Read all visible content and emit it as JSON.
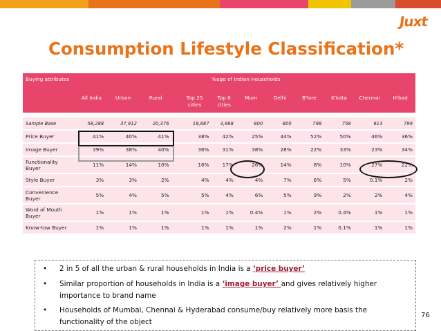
{
  "brand": {
    "logo": "Juxt",
    "accent": "#e8731a",
    "header_color": "#e8456b",
    "row_color": "#fde4ea"
  },
  "topbar": {
    "colors": [
      "#f3a01b",
      "#e8731a",
      "#e8456b",
      "#f0c500",
      "#9b9b9b",
      "#d84d2c"
    ]
  },
  "slide": {
    "title": "Consumption Lifestyle Classification*",
    "page_number": "76"
  },
  "table": {
    "header_attr": "Buying attributes",
    "header_group": "%age of Indian Households",
    "columns": [
      "All India",
      "Urban",
      "Rural",
      "Top 25 cities",
      "Top 6 cities",
      "Mum",
      "Delhi",
      "B'lore",
      "K'kata",
      "Chennai",
      "H'bad"
    ],
    "rows": [
      {
        "label": "Sample Base",
        "values": [
          "58,288",
          "37,912",
          "20,376",
          "18,687",
          "4,968",
          "800",
          "800",
          "798",
          "758",
          "613",
          "799"
        ]
      },
      {
        "label": "Price Buyer",
        "values": [
          "41%",
          "40%",
          "41%",
          "38%",
          "42%",
          "25%",
          "44%",
          "52%",
          "50%",
          "46%",
          "36%"
        ]
      },
      {
        "label": "Image Buyer",
        "values": [
          "39%",
          "38%",
          "40%",
          "36%",
          "31%",
          "38%",
          "28%",
          "22%",
          "33%",
          "23%",
          "34%"
        ]
      },
      {
        "label": "Functionality Buyer",
        "values": [
          "11%",
          "14%",
          "10%",
          "16%",
          "17%",
          "26%",
          "14%",
          "8%",
          "10%",
          "27%",
          "22%"
        ]
      },
      {
        "label": "Style Buyer",
        "values": [
          "3%",
          "3%",
          "2%",
          "4%",
          "4%",
          "4%",
          "7%",
          "6%",
          "5%",
          "0.1%",
          "2%"
        ]
      },
      {
        "label": "Convenience Buyer",
        "values": [
          "5%",
          "4%",
          "5%",
          "5%",
          "4%",
          "6%",
          "5%",
          "9%",
          "2%",
          "2%",
          "4%"
        ]
      },
      {
        "label": "Word of Mouth Buyer",
        "values": [
          "1%",
          "1%",
          "1%",
          "1%",
          "1%",
          "0.4%",
          "1%",
          "2%",
          "0.4%",
          "1%",
          "1%"
        ]
      },
      {
        "label": "Know-tow Buyer",
        "values": [
          "1%",
          "1%",
          "1%",
          "1%",
          "1%",
          "1%",
          "2%",
          "1%",
          "0.1%",
          "1%",
          "1%"
        ]
      }
    ]
  },
  "notes": {
    "bullet": "•",
    "n1_pre": "2 in 5 of all the urban & rural households in India is a ",
    "n1_hl": "‘price buyer’",
    "n2_pre": "Similar proportion of households in India is a ",
    "n2_hl": "‘image buyer’ ",
    "n2_post": "and gives relatively higher importance to brand name",
    "n3": "Households of Mumbai, Chennai & Hyderabad consume/buy relatively more basis the functionality of the object"
  }
}
